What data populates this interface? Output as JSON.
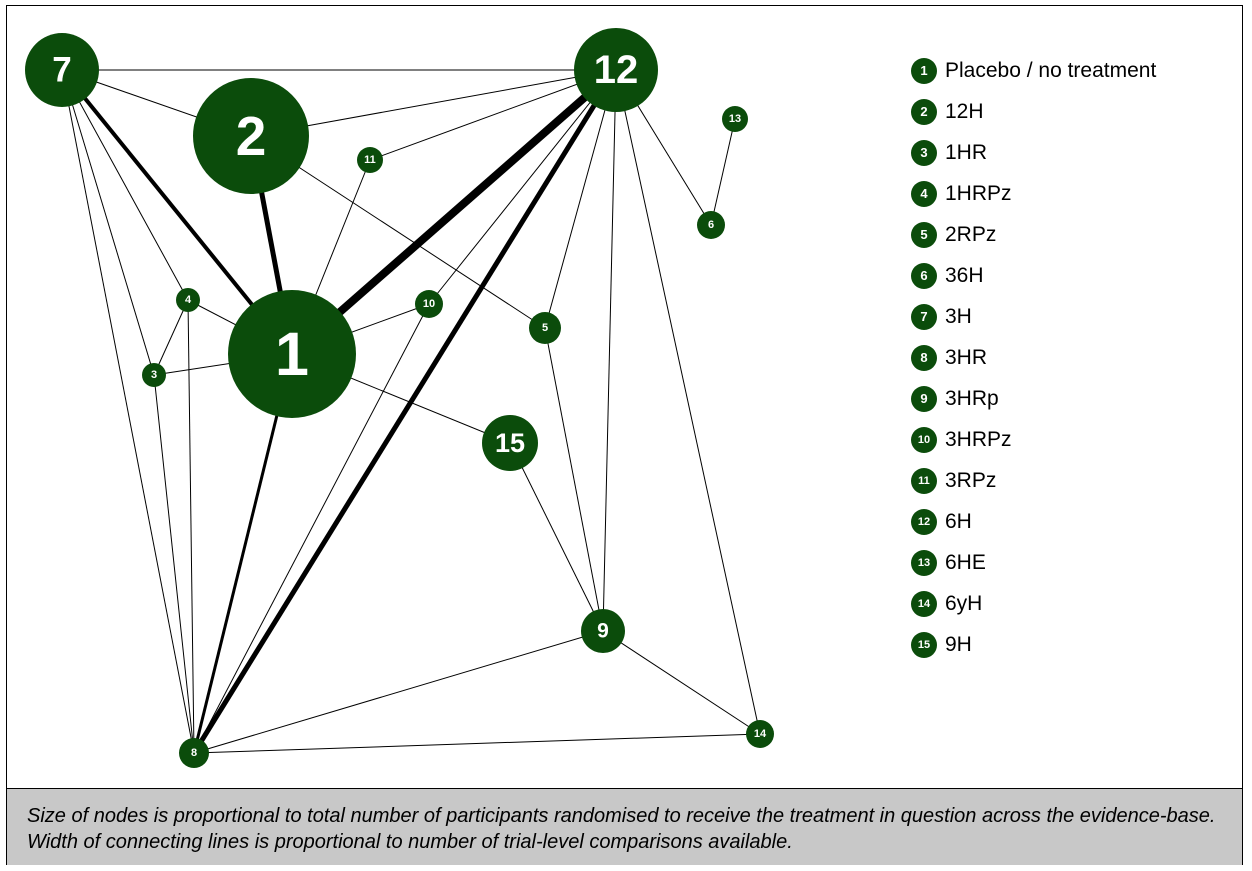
{
  "diagram": {
    "nodes": [
      {
        "id": 1,
        "label": "1",
        "name": "Placebo / no treatment"
      },
      {
        "id": 2,
        "label": "2",
        "name": "12H"
      },
      {
        "id": 3,
        "label": "3",
        "name": "1HR"
      },
      {
        "id": 4,
        "label": "4",
        "name": "1HRPz"
      },
      {
        "id": 5,
        "label": "5",
        "name": "2RPz"
      },
      {
        "id": 6,
        "label": "6",
        "name": "36H"
      },
      {
        "id": 7,
        "label": "7",
        "name": "3H"
      },
      {
        "id": 8,
        "label": "8",
        "name": "3HR"
      },
      {
        "id": 9,
        "label": "9",
        "name": "3HRp"
      },
      {
        "id": 10,
        "label": "10",
        "name": "3HRPz"
      },
      {
        "id": 11,
        "label": "11",
        "name": "3RPz"
      },
      {
        "id": 12,
        "label": "12",
        "name": "6H"
      },
      {
        "id": 13,
        "label": "13",
        "name": "6HE"
      },
      {
        "id": 14,
        "label": "14",
        "name": "6yH"
      },
      {
        "id": 15,
        "label": "15",
        "name": "9H"
      }
    ],
    "edges": [
      [
        7,
        12
      ],
      [
        7,
        2
      ],
      [
        7,
        1
      ],
      [
        7,
        4
      ],
      [
        7,
        3
      ],
      [
        7,
        8
      ],
      [
        2,
        12
      ],
      [
        2,
        1
      ],
      [
        2,
        5
      ],
      [
        12,
        11
      ],
      [
        12,
        1
      ],
      [
        12,
        8
      ],
      [
        12,
        10
      ],
      [
        12,
        5
      ],
      [
        12,
        9
      ],
      [
        12,
        6
      ],
      [
        12,
        14
      ],
      [
        13,
        6
      ],
      [
        11,
        1
      ],
      [
        4,
        1
      ],
      [
        4,
        3
      ],
      [
        4,
        8
      ],
      [
        3,
        1
      ],
      [
        3,
        8
      ],
      [
        1,
        10
      ],
      [
        1,
        15
      ],
      [
        1,
        8
      ],
      [
        10,
        8
      ],
      [
        5,
        9
      ],
      [
        15,
        9
      ],
      [
        9,
        8
      ],
      [
        9,
        14
      ],
      [
        8,
        14
      ]
    ],
    "node_color": "#0b4c0b",
    "node_label_color": "#ffffff",
    "edge_color": "#000000"
  },
  "legend": [
    {
      "num": "1",
      "label": "Placebo / no treatment"
    },
    {
      "num": "2",
      "label": "12H"
    },
    {
      "num": "3",
      "label": "1HR"
    },
    {
      "num": "4",
      "label": "1HRPz"
    },
    {
      "num": "5",
      "label": "2RPz"
    },
    {
      "num": "6",
      "label": "36H"
    },
    {
      "num": "7",
      "label": "3H"
    },
    {
      "num": "8",
      "label": "3HR"
    },
    {
      "num": "9",
      "label": "3HRp"
    },
    {
      "num": "10",
      "label": "3HRPz"
    },
    {
      "num": "11",
      "label": "3RPz"
    },
    {
      "num": "12",
      "label": "6H"
    },
    {
      "num": "13",
      "label": "6HE"
    },
    {
      "num": "14",
      "label": "6yH"
    },
    {
      "num": "15",
      "label": "9H"
    }
  ],
  "caption": "Size of nodes is proportional to total number of participants randomised to receive the treatment in question across the evidence-base. Width of connecting lines is proportional to number of trial-level comparisons available."
}
